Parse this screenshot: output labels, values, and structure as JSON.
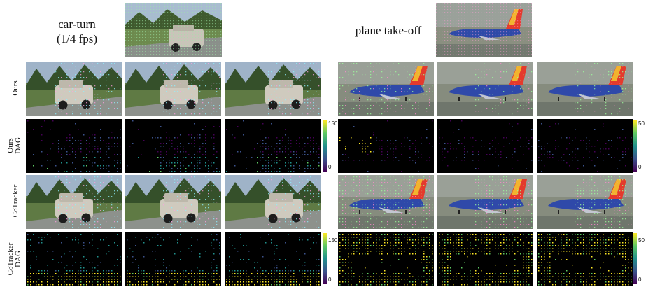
{
  "figure": {
    "left_panel": {
      "title_line1": "car-turn",
      "title_line2": "(1/4 fps)"
    },
    "right_panel": {
      "title": "plane take-off"
    },
    "row_labels": {
      "ours": "Ours",
      "ours_dag_1": "Ours",
      "ours_dag_2": "DAG",
      "cotracker": "CoTracker",
      "cotracker_dag_1": "CoTracker",
      "cotracker_dag_2": "DAG"
    },
    "colorbars": {
      "car_top": "150",
      "car_bottom": "0",
      "plane_top": "50",
      "plane_bottom": "0"
    },
    "colors": {
      "viridis_dark": "#440154",
      "viridis_mid": "#21918c",
      "viridis_bright": "#fde725"
    }
  }
}
